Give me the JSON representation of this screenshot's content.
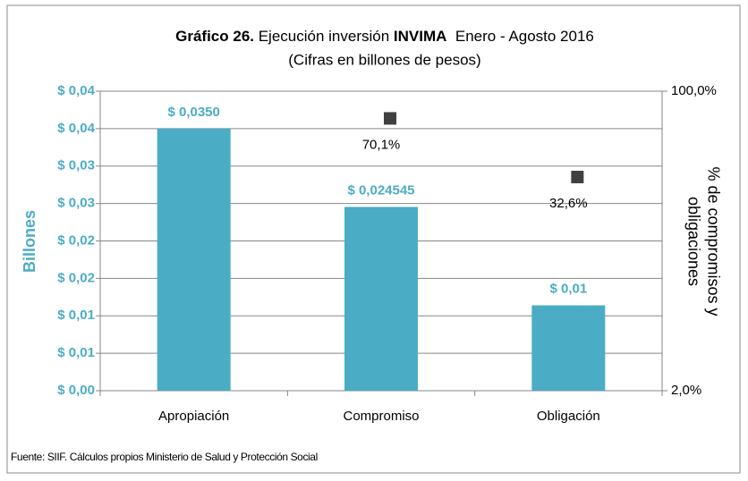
{
  "chart_data": {
    "type": "bar",
    "title": [
      "Gráfico 26.",
      " Ejecución inversión ",
      "INVIMA",
      "  Enero - Agosto 2016"
    ],
    "subtitle": "(Cifras en billones de pesos)",
    "ylabel": "Billones",
    "y2label": [
      "% de compromisos y",
      "obligaciones"
    ],
    "source": "Fuente: SIIF. Cálculos propios Ministerio de Salud y Protección Social",
    "categories": [
      "Apropiación",
      "Compromiso",
      "Obligación"
    ],
    "series": [
      {
        "type": "bar",
        "color": "#4bacc6",
        "values": [
          0.035,
          0.024545,
          0.0114
        ],
        "value_labels": [
          "$ 0,0350",
          "$ 0,024545",
          "$ 0,01"
        ]
      },
      {
        "type": "scatter",
        "axis": "y2",
        "marker": "square",
        "color": "#404040",
        "values": [
          null,
          70.1,
          32.6
        ],
        "value_labels": [
          null,
          "70,1%",
          "32,6%"
        ]
      }
    ],
    "ylim": [
      0,
      0.04
    ],
    "yticks": [
      {
        "value": 0,
        "label": "$ 0,00"
      },
      {
        "value": 0.005,
        "label": "$ 0,01"
      },
      {
        "value": 0.01,
        "label": "$ 0,01"
      },
      {
        "value": 0.015,
        "label": "$ 0,02"
      },
      {
        "value": 0.02,
        "label": "$ 0,02"
      },
      {
        "value": 0.025,
        "label": "$ 0,03"
      },
      {
        "value": 0.03,
        "label": "$ 0,03"
      },
      {
        "value": 0.035,
        "label": "$ 0,04"
      },
      {
        "value": 0.04,
        "label": "$ 0,04"
      }
    ],
    "y2lim": [
      2,
      100
    ],
    "y2scale": "log",
    "y2ticks": [
      {
        "value": 2,
        "label": "2,0%"
      },
      {
        "value": 100,
        "label": "100,0%"
      }
    ],
    "grid": true
  }
}
